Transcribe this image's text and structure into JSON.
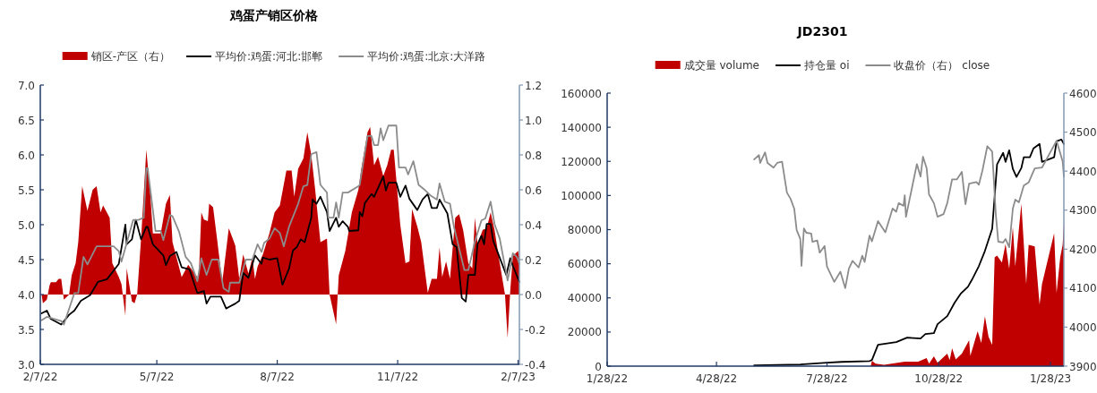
{
  "chart_data": [
    {
      "type": "line",
      "title": "鸡蛋产销区价格",
      "legend": "top",
      "xlim": [
        "2022-02-07",
        "2023-02-08"
      ],
      "xticks": [
        {
          "value": "2022-02-07",
          "label": "2/7/22"
        },
        {
          "value": "2022-05-07",
          "label": "5/7/22"
        },
        {
          "value": "2022-08-07",
          "label": "8/7/22"
        },
        {
          "value": "2022-11-07",
          "label": "11/7/22"
        },
        {
          "value": "2023-02-07",
          "label": "2/7/23"
        }
      ],
      "ylim": [
        3,
        7
      ],
      "yticks": [
        {
          "value": 3,
          "label": "3.0"
        },
        {
          "value": 3.5,
          "label": "3.5"
        },
        {
          "value": 4,
          "label": "4.0"
        },
        {
          "value": 4.5,
          "label": "4.5"
        },
        {
          "value": 5,
          "label": "5.0"
        },
        {
          "value": 5.5,
          "label": "5.5"
        },
        {
          "value": 6,
          "label": "6.0"
        },
        {
          "value": 6.5,
          "label": "6.5"
        },
        {
          "value": 7,
          "label": "7.0"
        }
      ],
      "y2lim": [
        -0.4,
        1.2
      ],
      "y2ticks": [
        {
          "value": -0.4,
          "label": "-0.4"
        },
        {
          "value": -0.2,
          "label": "-0.2"
        },
        {
          "value": 0,
          "label": "0.0"
        },
        {
          "value": 0.2,
          "label": "0.2"
        },
        {
          "value": 0.4,
          "label": "0.4"
        },
        {
          "value": 0.6,
          "label": "0.6"
        },
        {
          "value": 0.8,
          "label": "0.8"
        },
        {
          "value": 1,
          "label": "1.0"
        },
        {
          "value": 1.2,
          "label": "1.2"
        }
      ],
      "series": [
        {
          "name": "销区-产区（右）",
          "type": "area",
          "axis": "y2",
          "color": "#c00000",
          "x": [
            "2022-02-08",
            "2022-02-09",
            "2022-02-12",
            "2022-02-14",
            "2022-02-15",
            "2022-02-19",
            "2022-02-21",
            "2022-02-23",
            "2022-02-25",
            "2022-03-01",
            "2022-03-03",
            "2022-03-06",
            "2022-03-08",
            "2022-03-11",
            "2022-03-15",
            "2022-03-17",
            "2022-03-19",
            "2022-03-22",
            "2022-03-25",
            "2022-03-27",
            "2022-04-01",
            "2022-04-03",
            "2022-04-08",
            "2022-04-10",
            "2022-04-13",
            "2022-04-14",
            "2022-04-18",
            "2022-04-20",
            "2022-04-22",
            "2022-04-25",
            "2022-04-29",
            "2022-05-02",
            "2022-05-04",
            "2022-05-10",
            "2022-05-14",
            "2022-05-17",
            "2022-05-19",
            "2022-05-26",
            "2022-05-31",
            "2022-06-08",
            "2022-06-10",
            "2022-06-12",
            "2022-06-15",
            "2022-06-16",
            "2022-06-19",
            "2022-06-22",
            "2022-06-26",
            "2022-07-01",
            "2022-07-04",
            "2022-07-06",
            "2022-07-09",
            "2022-07-12",
            "2022-07-16",
            "2022-07-19",
            "2022-07-21",
            "2022-07-23",
            "2022-07-27",
            "2022-08-01",
            "2022-08-05",
            "2022-08-09",
            "2022-08-14",
            "2022-08-18",
            "2022-08-20",
            "2022-08-23",
            "2022-08-27",
            "2022-08-30",
            "2022-09-02",
            "2022-09-05",
            "2022-09-09",
            "2022-09-14",
            "2022-09-16",
            "2022-09-21",
            "2022-09-23",
            "2022-09-28",
            "2022-10-03",
            "2022-10-08",
            "2022-10-10",
            "2022-10-15",
            "2022-10-17",
            "2022-10-20",
            "2022-10-23",
            "2022-10-27",
            "2022-10-30",
            "2022-11-02",
            "2022-11-04",
            "2022-11-09",
            "2022-11-13",
            "2022-11-16",
            "2022-11-18",
            "2022-11-22",
            "2022-11-25",
            "2022-11-30",
            "2022-12-03",
            "2022-12-07",
            "2022-12-09",
            "2022-12-11",
            "2022-12-14",
            "2022-12-17",
            "2022-12-21",
            "2022-12-24",
            "2022-12-27",
            "2022-12-31",
            "2023-01-03",
            "2023-01-05",
            "2023-01-07",
            "2023-01-11",
            "2023-01-14",
            "2023-01-17",
            "2023-01-20",
            "2023-01-24",
            "2023-01-28",
            "2023-01-30",
            "2023-02-01",
            "2023-02-03",
            "2023-02-07",
            "2023-02-08"
          ],
          "values": [
            0,
            -0.05,
            -0.03,
            0.05,
            0.07,
            0.07,
            0.09,
            0.09,
            -0.03,
            0,
            0.11,
            0.18,
            0.3,
            0.62,
            0.48,
            0.54,
            0.6,
            0.62,
            0.47,
            0.51,
            0.44,
            0.18,
            0.1,
            0.06,
            -0.12,
            0.15,
            -0.04,
            -0.05,
            0,
            0.32,
            0.83,
            0.58,
            0.35,
            0.35,
            0.52,
            0.57,
            0.3,
            0.1,
            0.17,
            0.09,
            0.47,
            0.43,
            0.42,
            0.52,
            0.5,
            0.32,
            0.07,
            0.38,
            0.32,
            0.28,
            0.09,
            0.23,
            0.12,
            0.21,
            0.09,
            0.16,
            0.23,
            0.35,
            0.47,
            0.51,
            0.71,
            0.71,
            0.56,
            0.72,
            0.78,
            0.93,
            0.8,
            0.6,
            0.3,
            0.32,
            0,
            -0.17,
            0.11,
            0.25,
            0.47,
            0.6,
            0.71,
            0.93,
            0.96,
            0.74,
            0.79,
            0.68,
            0.74,
            0.83,
            0.83,
            0.4,
            0.18,
            0.19,
            0.49,
            0.39,
            0.3,
            0.01,
            0.09,
            0.09,
            0.27,
            0.1,
            0.19,
            0.09,
            0.44,
            0.46,
            0.37,
            0.18,
            0.15,
            0.44,
            0.29,
            0.37,
            0.38,
            0.47,
            0.37,
            0.18,
            0,
            -0.25,
            0.02,
            0.22,
            0.25,
            0.19
          ]
        },
        {
          "name": "平均价:鸡蛋:河北:邯郸",
          "color": "#000000",
          "x": [
            "2022-02-08",
            "2022-02-12",
            "2022-02-15",
            "2022-02-23",
            "2022-03-01",
            "2022-03-05",
            "2022-03-10",
            "2022-03-17",
            "2022-03-23",
            "2022-03-30",
            "2022-04-08",
            "2022-04-13",
            "2022-04-14",
            "2022-04-18",
            "2022-04-21",
            "2022-04-25",
            "2022-04-29",
            "2022-04-30",
            "2022-05-04",
            "2022-05-12",
            "2022-05-14",
            "2022-05-17",
            "2022-05-22",
            "2022-05-26",
            "2022-06-01",
            "2022-06-07",
            "2022-06-12",
            "2022-06-14",
            "2022-06-17",
            "2022-06-25",
            "2022-06-29",
            "2022-07-06",
            "2022-07-09",
            "2022-07-12",
            "2022-07-16",
            "2022-07-21",
            "2022-07-26",
            "2022-07-27",
            "2022-08-01",
            "2022-08-07",
            "2022-08-11",
            "2022-08-16",
            "2022-08-19",
            "2022-08-22",
            "2022-08-25",
            "2022-08-28",
            "2022-09-02",
            "2022-09-03",
            "2022-09-06",
            "2022-09-09",
            "2022-09-14",
            "2022-09-16",
            "2022-09-21",
            "2022-09-23",
            "2022-09-26",
            "2022-09-30",
            "2022-10-01",
            "2022-10-08",
            "2022-10-09",
            "2022-10-11",
            "2022-10-13",
            "2022-10-18",
            "2022-10-20",
            "2022-10-27",
            "2022-10-29",
            "2022-10-31",
            "2022-11-06",
            "2022-11-09",
            "2022-11-13",
            "2022-11-16",
            "2022-11-22",
            "2022-11-26",
            "2022-11-30",
            "2022-12-03",
            "2022-12-07",
            "2022-12-09",
            "2022-12-15",
            "2022-12-19",
            "2022-12-22",
            "2022-12-26",
            "2022-12-29",
            "2022-12-31",
            "2023-01-05",
            "2023-01-07",
            "2023-01-10",
            "2023-01-12",
            "2023-01-14",
            "2023-01-17",
            "2023-01-19",
            "2023-01-29",
            "2023-02-01",
            "2023-02-03",
            "2023-02-08"
          ],
          "values": [
            3.73,
            3.77,
            3.65,
            3.57,
            3.71,
            3.77,
            3.91,
            3.99,
            4.18,
            4.22,
            4.44,
            5.0,
            4.72,
            4.79,
            5.07,
            4.79,
            4.97,
            4.97,
            4.72,
            4.56,
            4.42,
            4.55,
            4.61,
            4.39,
            4.36,
            4.02,
            4.05,
            3.87,
            3.97,
            3.97,
            3.8,
            3.87,
            3.91,
            4.31,
            4.24,
            4.56,
            4.44,
            4.53,
            4.5,
            4.52,
            4.14,
            4.37,
            4.63,
            4.68,
            4.79,
            4.75,
            5.1,
            5.36,
            5.3,
            5.4,
            5.18,
            4.91,
            5.1,
            4.97,
            5.05,
            4.97,
            4.91,
            4.92,
            5.18,
            5.12,
            5.31,
            5.44,
            5.4,
            5.69,
            5.49,
            5.6,
            5.6,
            5.4,
            5.56,
            5.37,
            5.21,
            5.36,
            5.44,
            5.24,
            5.24,
            5.36,
            5.16,
            4.72,
            4.68,
            3.95,
            3.9,
            4.28,
            4.28,
            4.72,
            4.84,
            4.72,
            5.01,
            5.01,
            4.77,
            4.28,
            4.52,
            4.41,
            4.18
          ]
        },
        {
          "name": "平均价:鸡蛋:北京:大洋路",
          "color": "#8c8c8c",
          "x": [
            "2022-02-08",
            "2022-02-12",
            "2022-02-23",
            "2022-02-25",
            "2022-03-05",
            "2022-03-08",
            "2022-03-12",
            "2022-03-15",
            "2022-03-22",
            "2022-04-04",
            "2022-04-08",
            "2022-04-10",
            "2022-04-13",
            "2022-04-19",
            "2022-04-23",
            "2022-04-27",
            "2022-04-29",
            "2022-04-30",
            "2022-05-06",
            "2022-05-10",
            "2022-05-12",
            "2022-05-17",
            "2022-05-19",
            "2022-05-24",
            "2022-05-29",
            "2022-06-02",
            "2022-06-07",
            "2022-06-10",
            "2022-06-14",
            "2022-06-18",
            "2022-06-23",
            "2022-06-27",
            "2022-07-01",
            "2022-07-02",
            "2022-07-09",
            "2022-07-14",
            "2022-07-19",
            "2022-07-23",
            "2022-07-26",
            "2022-07-28",
            "2022-08-01",
            "2022-08-05",
            "2022-08-09",
            "2022-08-12",
            "2022-08-16",
            "2022-08-23",
            "2022-08-27",
            "2022-08-30",
            "2022-09-02",
            "2022-09-06",
            "2022-09-09",
            "2022-09-14",
            "2022-09-15",
            "2022-09-19",
            "2022-09-21",
            "2022-09-23",
            "2022-09-26",
            "2022-09-30",
            "2022-10-08",
            "2022-10-09",
            "2022-10-15",
            "2022-10-18",
            "2022-10-20",
            "2022-10-23",
            "2022-10-25",
            "2022-10-27",
            "2022-10-31",
            "2022-11-06",
            "2022-11-08",
            "2022-11-13",
            "2022-11-15",
            "2022-11-19",
            "2022-11-23",
            "2022-11-27",
            "2022-12-02",
            "2022-12-07",
            "2022-12-09",
            "2022-12-13",
            "2022-12-17",
            "2022-12-20",
            "2022-12-28",
            "2022-12-31",
            "2023-01-05",
            "2023-01-10",
            "2023-01-13",
            "2023-01-17",
            "2023-01-20",
            "2023-01-24",
            "2023-01-30",
            "2023-02-03",
            "2023-02-06",
            "2023-02-08"
          ],
          "values": [
            3.63,
            3.68,
            3.62,
            3.57,
            4.02,
            4.02,
            4.54,
            4.43,
            4.69,
            4.69,
            4.62,
            4.47,
            4.67,
            5.07,
            5.07,
            5.1,
            5.81,
            5.81,
            4.91,
            4.91,
            4.78,
            5.14,
            5.12,
            4.9,
            4.54,
            4.45,
            4.19,
            4.52,
            4.28,
            4.5,
            4.5,
            4.09,
            4.04,
            4.17,
            4.17,
            4.5,
            4.5,
            4.72,
            4.61,
            4.74,
            4.8,
            4.95,
            4.88,
            4.69,
            4.97,
            5.3,
            5.55,
            5.57,
            6.01,
            6.04,
            5.57,
            5.46,
            5.1,
            5.1,
            5.32,
            5.1,
            5.46,
            5.46,
            5.55,
            5.57,
            6.27,
            6.27,
            6.14,
            6.14,
            6.38,
            6.21,
            6.42,
            6.42,
            5.82,
            5.82,
            5.72,
            5.91,
            5.57,
            5.51,
            5.42,
            5.36,
            5.59,
            5.33,
            5.3,
            4.97,
            4.35,
            4.35,
            4.76,
            5.06,
            5.09,
            5.33,
            5.01,
            4.8,
            4.2,
            4.59,
            4.54,
            4.44
          ]
        }
      ]
    },
    {
      "type": "line",
      "title": "JD2301",
      "legend": "top",
      "xlim": [
        "2022-01-28",
        "2023-02-08"
      ],
      "xticks": [
        {
          "value": "2022-01-28",
          "label": "1/28/22"
        },
        {
          "value": "2022-04-28",
          "label": "4/28/22"
        },
        {
          "value": "2022-07-28",
          "label": "7/28/22"
        },
        {
          "value": "2022-10-28",
          "label": "10/28/22"
        },
        {
          "value": "2023-01-28",
          "label": "1/28/23"
        }
      ],
      "ylim": [
        0,
        160000
      ],
      "yticks": [
        0,
        20000,
        40000,
        60000,
        80000,
        100000,
        120000,
        140000,
        160000
      ],
      "y2lim": [
        3900,
        4600
      ],
      "y2ticks": [
        3900,
        4000,
        4100,
        4200,
        4300,
        4400,
        4500,
        4600
      ],
      "series": [
        {
          "name": "成交量 volume",
          "type": "area",
          "color": "#c00000",
          "x": [
            "2022-09-02",
            "2022-09-03",
            "2022-09-06",
            "2022-09-13",
            "2022-09-30",
            "2022-10-11",
            "2022-10-18",
            "2022-10-20",
            "2022-10-24",
            "2022-10-27",
            "2022-11-04",
            "2022-11-06",
            "2022-11-08",
            "2022-11-11",
            "2022-11-16",
            "2022-11-22",
            "2022-11-23",
            "2022-11-29",
            "2022-12-02",
            "2022-12-05",
            "2022-12-08",
            "2022-12-11",
            "2022-12-13",
            "2022-12-15",
            "2022-12-19",
            "2022-12-22",
            "2022-12-25",
            "2022-12-28",
            "2022-12-30",
            "2023-01-04",
            "2023-01-08",
            "2023-01-10",
            "2023-01-15",
            "2023-01-19",
            "2023-01-21",
            "2023-01-31",
            "2023-02-02",
            "2023-02-05",
            "2023-02-07",
            "2023-02-08"
          ],
          "values": [
            0,
            3100,
            1500,
            800,
            2600,
            2600,
            4700,
            1500,
            5800,
            2000,
            7300,
            3500,
            10500,
            4000,
            7300,
            15200,
            6000,
            20400,
            13600,
            29300,
            17200,
            12500,
            63800,
            64800,
            60700,
            71600,
            57000,
            81600,
            58500,
            95200,
            48100,
            71100,
            70100,
            36100,
            48100,
            77900,
            42900,
            63800,
            71100,
            83100
          ]
        },
        {
          "name": "持仓量 oi",
          "color": "#000000",
          "x": [
            "2022-05-29",
            "2022-07-06",
            "2022-07-28",
            "2022-08-09",
            "2022-09-01",
            "2022-09-03",
            "2022-09-08",
            "2022-09-13",
            "2022-09-23",
            "2022-10-02",
            "2022-10-13",
            "2022-10-17",
            "2022-10-24",
            "2022-10-27",
            "2022-11-04",
            "2022-11-10",
            "2022-11-15",
            "2022-11-21",
            "2022-11-24",
            "2022-11-30",
            "2022-12-05",
            "2022-12-11",
            "2022-12-15",
            "2022-12-20",
            "2022-12-22",
            "2022-12-25",
            "2022-12-28",
            "2022-12-31",
            "2023-01-04",
            "2023-01-06",
            "2023-01-11",
            "2023-01-14",
            "2023-01-19",
            "2023-01-21",
            "2023-01-31",
            "2023-02-02",
            "2023-02-06",
            "2023-02-08"
          ],
          "values": [
            500,
            1000,
            2000,
            2500,
            3000,
            3600,
            12500,
            13000,
            14100,
            16700,
            16200,
            18800,
            19300,
            24600,
            29300,
            37100,
            42400,
            46500,
            50200,
            58600,
            67500,
            80500,
            118200,
            125000,
            119700,
            126500,
            115600,
            110900,
            116100,
            122400,
            122400,
            127600,
            130200,
            119700,
            122400,
            131800,
            132800,
            130200
          ]
        },
        {
          "name": "收盘价（右） close",
          "axis": "y2",
          "color": "#8c8c8c",
          "x": [
            "2022-05-29",
            "2022-06-02",
            "2022-06-03",
            "2022-06-07",
            "2022-06-09",
            "2022-06-14",
            "2022-06-17",
            "2022-06-21",
            "2022-06-25",
            "2022-06-28",
            "2022-07-01",
            "2022-07-03",
            "2022-07-06",
            "2022-07-07",
            "2022-07-09",
            "2022-07-11",
            "2022-07-15",
            "2022-07-16",
            "2022-07-20",
            "2022-07-22",
            "2022-07-26",
            "2022-07-28",
            "2022-08-03",
            "2022-08-08",
            "2022-08-12",
            "2022-08-15",
            "2022-08-18",
            "2022-08-23",
            "2022-08-26",
            "2022-08-28",
            "2022-09-01",
            "2022-09-03",
            "2022-09-08",
            "2022-09-14",
            "2022-09-20",
            "2022-09-23",
            "2022-09-25",
            "2022-09-29",
            "2022-09-30",
            "2022-10-01",
            "2022-10-10",
            "2022-10-13",
            "2022-10-15",
            "2022-10-18",
            "2022-10-20",
            "2022-10-24",
            "2022-10-27",
            "2022-11-01",
            "2022-11-04",
            "2022-11-08",
            "2022-11-12",
            "2022-11-16",
            "2022-11-19",
            "2022-11-22",
            "2022-11-28",
            "2022-11-30",
            "2022-12-03",
            "2022-12-07",
            "2022-12-11",
            "2022-12-14",
            "2022-12-16",
            "2022-12-20",
            "2022-12-22",
            "2022-12-25",
            "2022-12-28",
            "2022-12-30",
            "2023-01-02",
            "2023-01-06",
            "2023-01-10",
            "2023-01-15",
            "2023-01-21",
            "2023-02-02",
            "2023-02-07",
            "2023-02-08"
          ],
          "values": [
            4430,
            4441,
            4421,
            4448,
            4421,
            4409,
            4421,
            4424,
            4345,
            4329,
            4304,
            4249,
            4226,
            4157,
            4253,
            4242,
            4240,
            4219,
            4222,
            4191,
            4208,
            4155,
            4116,
            4142,
            4100,
            4150,
            4170,
            4153,
            4183,
            4167,
            4235,
            4220,
            4272,
            4243,
            4304,
            4296,
            4318,
            4311,
            4338,
            4283,
            4418,
            4386,
            4437,
            4408,
            4340,
            4318,
            4283,
            4290,
            4318,
            4379,
            4379,
            4398,
            4315,
            4368,
            4372,
            4365,
            4402,
            4464,
            4450,
            4288,
            4219,
            4217,
            4226,
            4205,
            4304,
            4327,
            4320,
            4363,
            4371,
            4407,
            4409,
            4478,
            4425,
            4386
          ]
        }
      ]
    }
  ]
}
